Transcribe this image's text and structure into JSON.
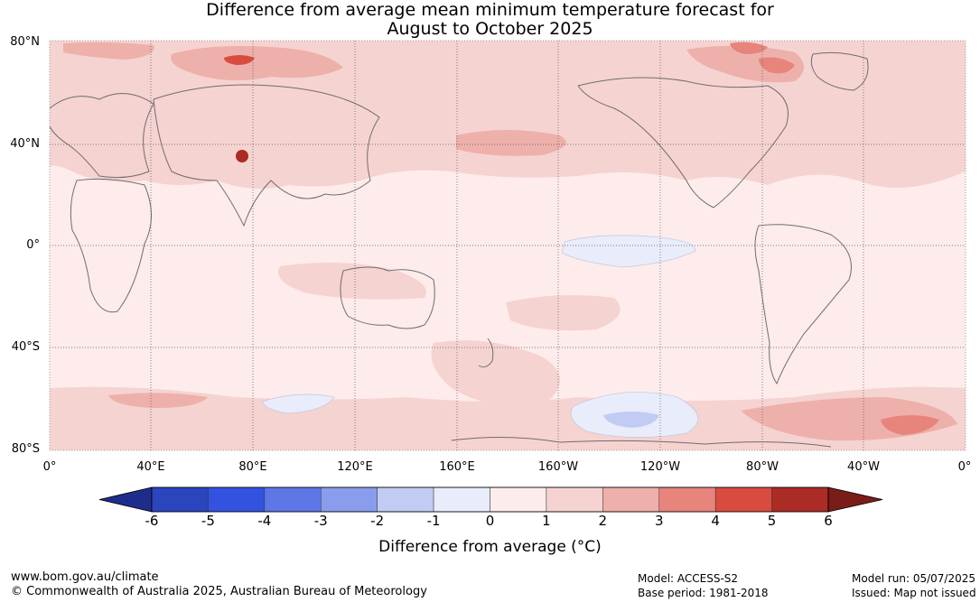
{
  "title_line1": "Difference from average mean minimum temperature forecast for",
  "title_line2": "August to October 2025",
  "lat_labels": [
    "80°N",
    "40°N",
    "0°",
    "40°S",
    "80°S"
  ],
  "lon_labels": [
    "0°",
    "40°E",
    "80°E",
    "120°E",
    "160°E",
    "160°W",
    "120°W",
    "80°W",
    "40°W",
    "0°"
  ],
  "colorbar": {
    "ticks": [
      "-6",
      "-5",
      "-4",
      "-3",
      "-2",
      "-1",
      "0",
      "1",
      "2",
      "3",
      "4",
      "5",
      "6"
    ],
    "colors": [
      "#1e2d8c",
      "#2b45bf",
      "#3452e0",
      "#5d77e6",
      "#8a9ded",
      "#c2cbf4",
      "#e8ecfb",
      "#fdeceb",
      "#f5d3d1",
      "#eeb0aa",
      "#e7847b",
      "#d84c40",
      "#ab2b25",
      "#7a1c18"
    ],
    "title": "Difference from average (°C)"
  },
  "footer": {
    "website": "www.bom.gov.au/climate",
    "copyright": "© Commonwealth of Australia 2025, Australian Bureau of Meteorology",
    "model": "Model: ACCESS-S2",
    "base_period": "Base period: 1981-2018",
    "model_run": "Model run: 05/07/2025",
    "issued": "Issued: Map not issued"
  }
}
